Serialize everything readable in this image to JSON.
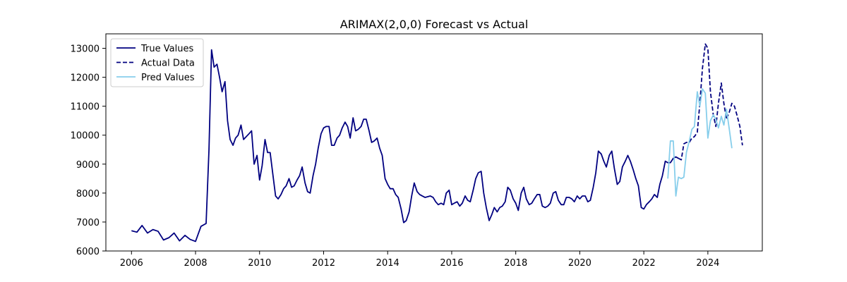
{
  "chart_data": {
    "type": "line",
    "title": "ARIMAX(2,0,0) Forecast vs Actual",
    "xlabel": "",
    "ylabel": "",
    "xlim": [
      2005.2,
      2025.7
    ],
    "ylim": [
      6000,
      13500
    ],
    "x_ticks": [
      2006,
      2008,
      2010,
      2012,
      2014,
      2016,
      2018,
      2020,
      2022,
      2024
    ],
    "y_ticks": [
      6000,
      7000,
      8000,
      9000,
      10000,
      11000,
      12000,
      13000
    ],
    "grid": false,
    "legend_position": "top-left",
    "series": [
      {
        "name": "True Values",
        "color": "#000080",
        "style": "solid",
        "points": [
          [
            2006.0,
            6700
          ],
          [
            2006.17,
            6650
          ],
          [
            2006.33,
            6880
          ],
          [
            2006.5,
            6620
          ],
          [
            2006.67,
            6740
          ],
          [
            2006.83,
            6680
          ],
          [
            2007.0,
            6380
          ],
          [
            2007.17,
            6460
          ],
          [
            2007.33,
            6620
          ],
          [
            2007.5,
            6350
          ],
          [
            2007.67,
            6540
          ],
          [
            2007.83,
            6400
          ],
          [
            2008.0,
            6330
          ],
          [
            2008.17,
            6850
          ],
          [
            2008.33,
            6950
          ],
          [
            2008.42,
            9500
          ],
          [
            2008.5,
            12950
          ],
          [
            2008.58,
            12350
          ],
          [
            2008.67,
            12450
          ],
          [
            2008.75,
            12000
          ],
          [
            2008.83,
            11500
          ],
          [
            2008.92,
            11850
          ],
          [
            2009.0,
            10500
          ],
          [
            2009.08,
            9850
          ],
          [
            2009.17,
            9650
          ],
          [
            2009.25,
            9900
          ],
          [
            2009.33,
            10000
          ],
          [
            2009.42,
            10350
          ],
          [
            2009.5,
            9850
          ],
          [
            2009.67,
            10050
          ],
          [
            2009.75,
            10150
          ],
          [
            2009.83,
            9000
          ],
          [
            2009.92,
            9300
          ],
          [
            2010.0,
            8450
          ],
          [
            2010.08,
            8950
          ],
          [
            2010.17,
            9850
          ],
          [
            2010.25,
            9400
          ],
          [
            2010.33,
            9400
          ],
          [
            2010.42,
            8600
          ],
          [
            2010.5,
            7900
          ],
          [
            2010.58,
            7800
          ],
          [
            2010.67,
            7950
          ],
          [
            2010.75,
            8150
          ],
          [
            2010.83,
            8250
          ],
          [
            2010.92,
            8500
          ],
          [
            2011.0,
            8200
          ],
          [
            2011.08,
            8250
          ],
          [
            2011.17,
            8450
          ],
          [
            2011.25,
            8600
          ],
          [
            2011.33,
            8900
          ],
          [
            2011.42,
            8350
          ],
          [
            2011.5,
            8050
          ],
          [
            2011.58,
            8000
          ],
          [
            2011.67,
            8600
          ],
          [
            2011.75,
            9000
          ],
          [
            2011.83,
            9550
          ],
          [
            2011.92,
            10050
          ],
          [
            2012.0,
            10250
          ],
          [
            2012.08,
            10300
          ],
          [
            2012.17,
            10300
          ],
          [
            2012.25,
            9650
          ],
          [
            2012.33,
            9650
          ],
          [
            2012.42,
            9900
          ],
          [
            2012.5,
            10000
          ],
          [
            2012.58,
            10250
          ],
          [
            2012.67,
            10450
          ],
          [
            2012.75,
            10300
          ],
          [
            2012.83,
            9900
          ],
          [
            2012.92,
            10600
          ],
          [
            2013.0,
            10150
          ],
          [
            2013.08,
            10200
          ],
          [
            2013.17,
            10300
          ],
          [
            2013.25,
            10550
          ],
          [
            2013.33,
            10550
          ],
          [
            2013.42,
            10150
          ],
          [
            2013.5,
            9750
          ],
          [
            2013.58,
            9800
          ],
          [
            2013.67,
            9900
          ],
          [
            2013.75,
            9550
          ],
          [
            2013.83,
            9300
          ],
          [
            2013.92,
            8500
          ],
          [
            2014.0,
            8300
          ],
          [
            2014.08,
            8150
          ],
          [
            2014.17,
            8150
          ],
          [
            2014.25,
            7950
          ],
          [
            2014.33,
            7850
          ],
          [
            2014.42,
            7450
          ],
          [
            2014.5,
            6980
          ],
          [
            2014.58,
            7050
          ],
          [
            2014.67,
            7350
          ],
          [
            2014.75,
            7900
          ],
          [
            2014.83,
            8350
          ],
          [
            2014.92,
            8050
          ],
          [
            2015.0,
            7950
          ],
          [
            2015.08,
            7900
          ],
          [
            2015.17,
            7850
          ],
          [
            2015.33,
            7900
          ],
          [
            2015.42,
            7850
          ],
          [
            2015.5,
            7700
          ],
          [
            2015.58,
            7600
          ],
          [
            2015.67,
            7650
          ],
          [
            2015.75,
            7600
          ],
          [
            2015.83,
            8000
          ],
          [
            2015.92,
            8100
          ],
          [
            2016.0,
            7600
          ],
          [
            2016.08,
            7650
          ],
          [
            2016.17,
            7700
          ],
          [
            2016.25,
            7550
          ],
          [
            2016.33,
            7650
          ],
          [
            2016.42,
            7900
          ],
          [
            2016.5,
            7750
          ],
          [
            2016.58,
            7700
          ],
          [
            2016.67,
            8100
          ],
          [
            2016.75,
            8500
          ],
          [
            2016.83,
            8700
          ],
          [
            2016.92,
            8750
          ],
          [
            2017.0,
            8000
          ],
          [
            2017.08,
            7500
          ],
          [
            2017.17,
            7050
          ],
          [
            2017.25,
            7250
          ],
          [
            2017.33,
            7500
          ],
          [
            2017.42,
            7350
          ],
          [
            2017.5,
            7500
          ],
          [
            2017.58,
            7550
          ],
          [
            2017.67,
            7700
          ],
          [
            2017.75,
            8200
          ],
          [
            2017.83,
            8100
          ],
          [
            2017.92,
            7800
          ],
          [
            2018.0,
            7650
          ],
          [
            2018.08,
            7400
          ],
          [
            2018.17,
            8000
          ],
          [
            2018.25,
            8200
          ],
          [
            2018.33,
            7800
          ],
          [
            2018.42,
            7600
          ],
          [
            2018.5,
            7650
          ],
          [
            2018.58,
            7800
          ],
          [
            2018.67,
            7950
          ],
          [
            2018.75,
            7950
          ],
          [
            2018.83,
            7550
          ],
          [
            2018.92,
            7500
          ],
          [
            2019.0,
            7550
          ],
          [
            2019.08,
            7650
          ],
          [
            2019.17,
            8000
          ],
          [
            2019.25,
            8050
          ],
          [
            2019.33,
            7750
          ],
          [
            2019.42,
            7600
          ],
          [
            2019.5,
            7600
          ],
          [
            2019.58,
            7850
          ],
          [
            2019.67,
            7850
          ],
          [
            2019.75,
            7800
          ],
          [
            2019.83,
            7700
          ],
          [
            2019.92,
            7900
          ],
          [
            2020.0,
            7800
          ],
          [
            2020.08,
            7900
          ],
          [
            2020.17,
            7900
          ],
          [
            2020.25,
            7700
          ],
          [
            2020.33,
            7750
          ],
          [
            2020.42,
            8200
          ],
          [
            2020.5,
            8700
          ],
          [
            2020.58,
            9450
          ],
          [
            2020.67,
            9350
          ],
          [
            2020.75,
            9100
          ],
          [
            2020.83,
            8900
          ],
          [
            2020.92,
            9300
          ],
          [
            2021.0,
            9450
          ],
          [
            2021.08,
            8850
          ],
          [
            2021.17,
            8300
          ],
          [
            2021.25,
            8400
          ],
          [
            2021.33,
            8900
          ],
          [
            2021.42,
            9100
          ],
          [
            2021.5,
            9300
          ],
          [
            2021.58,
            9100
          ],
          [
            2021.67,
            8800
          ],
          [
            2021.75,
            8500
          ],
          [
            2021.83,
            8250
          ],
          [
            2021.92,
            7500
          ],
          [
            2022.0,
            7450
          ],
          [
            2022.08,
            7600
          ],
          [
            2022.17,
            7700
          ],
          [
            2022.25,
            7800
          ],
          [
            2022.33,
            7950
          ],
          [
            2022.42,
            7850
          ],
          [
            2022.5,
            8300
          ],
          [
            2022.58,
            8600
          ],
          [
            2022.67,
            9100
          ],
          [
            2022.75,
            9050
          ],
          [
            2022.83,
            9050
          ],
          [
            2022.92,
            9200
          ],
          [
            2023.0,
            9250
          ],
          [
            2023.08,
            9200
          ]
        ]
      },
      {
        "name": "Actual Data",
        "color": "#000080",
        "style": "dashed",
        "points": [
          [
            2023.08,
            9200
          ],
          [
            2023.17,
            9150
          ],
          [
            2023.25,
            9700
          ],
          [
            2023.33,
            9750
          ],
          [
            2023.42,
            9750
          ],
          [
            2023.5,
            9900
          ],
          [
            2023.58,
            9950
          ],
          [
            2023.67,
            10100
          ],
          [
            2023.75,
            11100
          ],
          [
            2023.83,
            12300
          ],
          [
            2023.92,
            13150
          ],
          [
            2024.0,
            13000
          ],
          [
            2024.08,
            11500
          ],
          [
            2024.17,
            10700
          ],
          [
            2024.25,
            10300
          ],
          [
            2024.33,
            11100
          ],
          [
            2024.42,
            11800
          ],
          [
            2024.5,
            11100
          ],
          [
            2024.58,
            10550
          ],
          [
            2024.67,
            10800
          ],
          [
            2024.75,
            11100
          ],
          [
            2024.83,
            11000
          ],
          [
            2024.92,
            10650
          ],
          [
            2025.0,
            10300
          ],
          [
            2025.08,
            9650
          ]
        ]
      },
      {
        "name": "Pred Values",
        "color": "#87ceeb",
        "style": "solid",
        "points": [
          [
            2022.75,
            8500
          ],
          [
            2022.83,
            9800
          ],
          [
            2022.92,
            9800
          ],
          [
            2023.0,
            7900
          ],
          [
            2023.08,
            8550
          ],
          [
            2023.17,
            8500
          ],
          [
            2023.25,
            8550
          ],
          [
            2023.33,
            9400
          ],
          [
            2023.42,
            9800
          ],
          [
            2023.5,
            10200
          ],
          [
            2023.58,
            10300
          ],
          [
            2023.67,
            11500
          ],
          [
            2023.75,
            11000
          ],
          [
            2023.83,
            11600
          ],
          [
            2023.92,
            11450
          ],
          [
            2024.0,
            9900
          ],
          [
            2024.08,
            10500
          ],
          [
            2024.17,
            10700
          ],
          [
            2024.25,
            10550
          ],
          [
            2024.33,
            10250
          ],
          [
            2024.42,
            10650
          ],
          [
            2024.5,
            10350
          ],
          [
            2024.58,
            10900
          ],
          [
            2024.67,
            10200
          ],
          [
            2024.75,
            9550
          ]
        ]
      }
    ]
  }
}
